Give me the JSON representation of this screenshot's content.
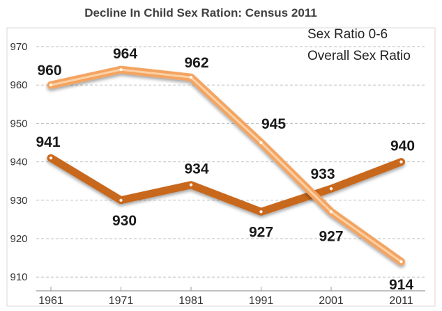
{
  "chart_data": {
    "type": "line",
    "title": "Decline In Child Sex Ration: Census 2011",
    "xlabel": "",
    "ylabel": "",
    "categories": [
      "1961",
      "1971",
      "1981",
      "1991",
      "2001",
      "2011"
    ],
    "y_ticks": [
      "970",
      "960",
      "950",
      "940",
      "930",
      "920",
      "910"
    ],
    "ylim": [
      908,
      972
    ],
    "grid": "horizontal dashed",
    "legend_position": "top-right",
    "series": [
      {
        "name": "Sex Ratio 0-6",
        "values": [
          960,
          964,
          962,
          945,
          927,
          914
        ],
        "labels": [
          "960",
          "964",
          "962",
          "945",
          "927",
          "914"
        ],
        "color": "#F4A460"
      },
      {
        "name": "Overall Sex Ratio",
        "values": [
          941,
          930,
          934,
          927,
          933,
          940
        ],
        "labels": [
          "941",
          "930",
          "934",
          "927",
          "933",
          "940"
        ],
        "color": "#C8671E"
      }
    ]
  }
}
